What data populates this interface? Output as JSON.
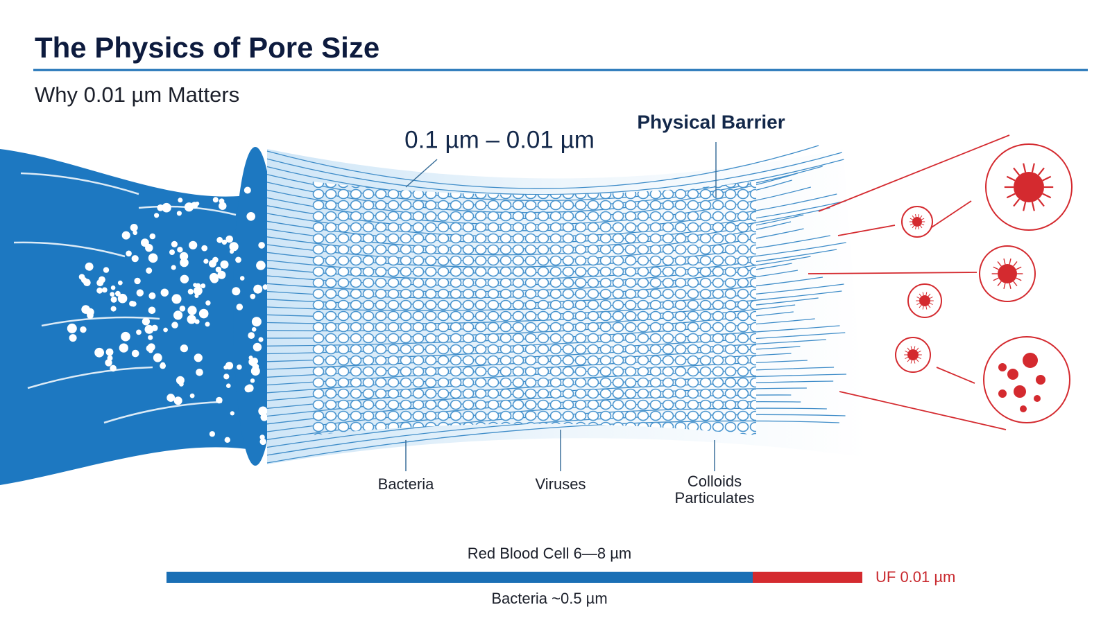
{
  "header": {
    "title": "The Physics of Pore Size",
    "subtitle": "Why 0.01 µm Matters"
  },
  "diagram": {
    "pore_range": "0.1 µm – 0.01 µm",
    "barrier_label": "Physical Barrier",
    "contaminants": [
      {
        "lines": [
          "Bacteria"
        ]
      },
      {
        "lines": [
          "Viruses"
        ]
      },
      {
        "lines": [
          "Colloids",
          "Particulates"
        ]
      }
    ]
  },
  "scale_bar": {
    "top_label": "Red Blood Cell 6—8 µm",
    "bottom_label": "Bacteria ~0.5 µm",
    "end_label": "UF 0.01 µm"
  }
}
